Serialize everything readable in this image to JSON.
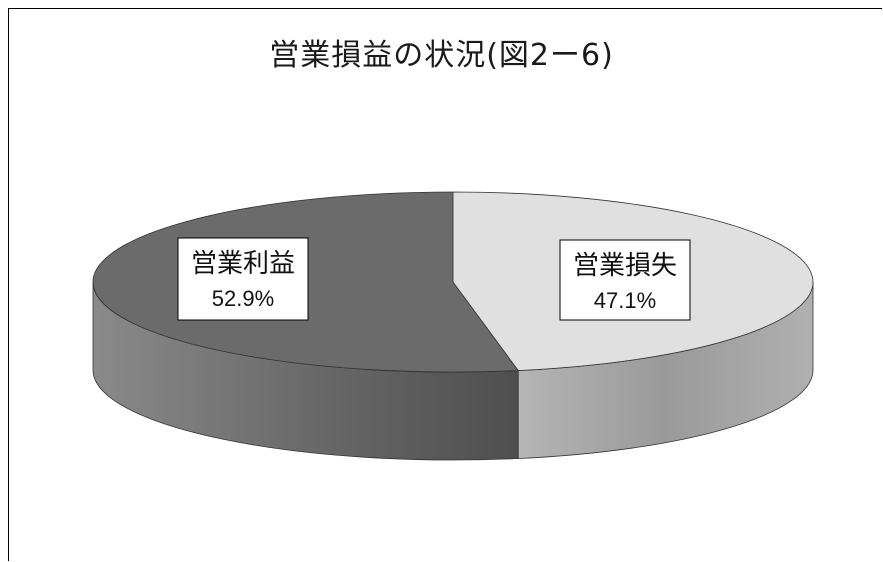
{
  "chart_data": {
    "type": "pie",
    "title": "営業損益の状況(図2ー6)",
    "slices": [
      {
        "label": "営業利益",
        "value": 52.9,
        "value_label": "52.9%",
        "color": "#6b6b6b",
        "side_color": "#555555"
      },
      {
        "label": "営業損失",
        "value": 47.1,
        "value_label": "47.1%",
        "color": "#e0e0e0",
        "side_color": "#9e9e9e"
      }
    ],
    "three_d": true,
    "legend": "none"
  }
}
